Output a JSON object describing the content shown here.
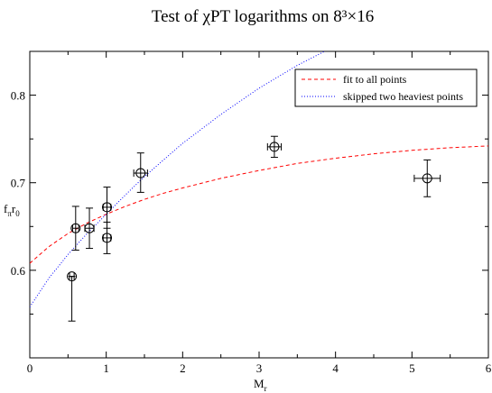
{
  "chart_data": {
    "type": "scatter",
    "title": "Test of χPT logarithms on 8³×16",
    "xlabel": "M_r",
    "ylabel": "f_π r_0",
    "xlim": [
      0,
      6
    ],
    "ylim": [
      0.5,
      0.85
    ],
    "x_ticks": [
      "0",
      "1",
      "2",
      "3",
      "4",
      "5",
      "6"
    ],
    "y_ticks": [
      "0.6",
      "0.7",
      "0.8"
    ],
    "x_tick_values": [
      0,
      1,
      2,
      3,
      4,
      5,
      6
    ],
    "y_tick_values": [
      0.6,
      0.7,
      0.8
    ],
    "points": [
      {
        "x": 0.55,
        "y": 0.593,
        "xerr": 0.03,
        "yerr_lo": 0.051,
        "yerr_hi": 0.0
      },
      {
        "x": 0.6,
        "y": 0.648,
        "xerr": 0.04,
        "yerr_lo": 0.025,
        "yerr_hi": 0.025
      },
      {
        "x": 0.78,
        "y": 0.648,
        "xerr": 0.06,
        "yerr_lo": 0.023,
        "yerr_hi": 0.023
      },
      {
        "x": 1.01,
        "y": 0.672,
        "xerr": 0.05,
        "yerr_lo": 0.024,
        "yerr_hi": 0.023
      },
      {
        "x": 1.01,
        "y": 0.637,
        "xerr": 0.05,
        "yerr_lo": 0.018,
        "yerr_hi": 0.018
      },
      {
        "x": 1.45,
        "y": 0.711,
        "xerr": 0.09,
        "yerr_lo": 0.022,
        "yerr_hi": 0.023
      },
      {
        "x": 3.2,
        "y": 0.741,
        "xerr": 0.09,
        "yerr_lo": 0.012,
        "yerr_hi": 0.012
      },
      {
        "x": 5.2,
        "y": 0.705,
        "xerr": 0.17,
        "yerr_lo": 0.021,
        "yerr_hi": 0.021
      }
    ],
    "fits": [
      {
        "name": "fit to all points",
        "color": "#ff0000",
        "style": "dashed",
        "x": [
          0,
          0.25,
          0.5,
          0.75,
          1,
          1.25,
          1.5,
          1.75,
          2,
          2.5,
          3,
          3.5,
          4,
          4.5,
          5,
          5.5,
          6
        ],
        "y": [
          0.608,
          0.627,
          0.642,
          0.654,
          0.664,
          0.673,
          0.681,
          0.688,
          0.694,
          0.705,
          0.714,
          0.722,
          0.728,
          0.733,
          0.737,
          0.74,
          0.742
        ]
      },
      {
        "name": "skipped two heaviest points",
        "color": "#0000ff",
        "style": "dotted",
        "x": [
          0,
          0.25,
          0.5,
          0.75,
          1,
          1.25,
          1.5,
          1.75,
          2,
          2.5,
          3,
          3.5,
          3.9
        ],
        "y": [
          0.558,
          0.591,
          0.618,
          0.642,
          0.664,
          0.686,
          0.707,
          0.726,
          0.745,
          0.778,
          0.808,
          0.834,
          0.852
        ]
      }
    ],
    "legend_position": "top-right",
    "grid": false
  }
}
